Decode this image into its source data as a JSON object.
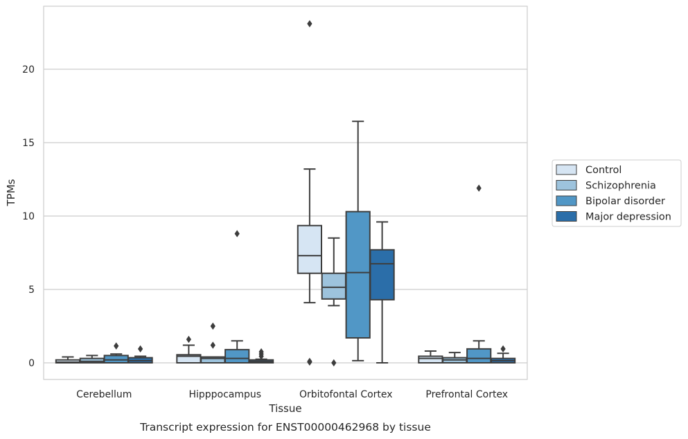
{
  "chart_data": {
    "type": "box",
    "title": "",
    "caption": "Transcript expression for ENST00000462968 by tissue",
    "xlabel": "Tissue",
    "ylabel": "TPMs",
    "ylim": [
      -1.1,
      24.4
    ],
    "yticks": [
      0,
      5,
      10,
      15,
      20
    ],
    "grid": "horizontal",
    "legend_position": "right",
    "categories": [
      "Cerebellum",
      "Hipppocampus",
      "Orbitofontal Cortex",
      "Prefrontal Cortex"
    ],
    "series": [
      {
        "name": "Control",
        "color": "#d6e5f3",
        "boxes": [
          {
            "whislo": 0,
            "q1": 0,
            "med": 0.05,
            "q3": 0.2,
            "whishi": 0.4,
            "fliers": []
          },
          {
            "whislo": 0,
            "q1": 0,
            "med": 0.45,
            "q3": 0.55,
            "whishi": 1.2,
            "fliers": [
              1.6
            ]
          },
          {
            "whislo": 4.1,
            "q1": 6.1,
            "med": 7.3,
            "q3": 9.35,
            "whishi": 13.2,
            "fliers": [
              0.05,
              0.1,
              23.1
            ]
          },
          {
            "whislo": 0,
            "q1": 0,
            "med": 0.3,
            "q3": 0.45,
            "whishi": 0.8,
            "fliers": []
          }
        ]
      },
      {
        "name": "Schizophrenia",
        "color": "#9dc3dd",
        "boxes": [
          {
            "whislo": 0,
            "q1": 0,
            "med": 0.1,
            "q3": 0.3,
            "whishi": 0.5,
            "fliers": []
          },
          {
            "whislo": 0,
            "q1": 0,
            "med": 0.3,
            "q3": 0.4,
            "whishi": 0.4,
            "fliers": [
              1.2,
              2.5
            ]
          },
          {
            "whislo": 3.9,
            "q1": 4.35,
            "med": 5.15,
            "q3": 6.1,
            "whishi": 8.5,
            "fliers": [
              0.0
            ]
          },
          {
            "whislo": 0,
            "q1": 0,
            "med": 0.2,
            "q3": 0.35,
            "whishi": 0.7,
            "fliers": []
          }
        ]
      },
      {
        "name": "Bipolar disorder",
        "color": "#5197c6",
        "boxes": [
          {
            "whislo": 0,
            "q1": 0,
            "med": 0.2,
            "q3": 0.5,
            "whishi": 0.6,
            "fliers": [
              1.15
            ]
          },
          {
            "whislo": 0,
            "q1": 0,
            "med": 0.3,
            "q3": 0.9,
            "whishi": 1.5,
            "fliers": [
              8.8
            ]
          },
          {
            "whislo": 0.15,
            "q1": 1.7,
            "med": 6.15,
            "q3": 10.3,
            "whishi": 16.45,
            "fliers": []
          },
          {
            "whislo": 0,
            "q1": 0,
            "med": 0.3,
            "q3": 0.95,
            "whishi": 1.5,
            "fliers": [
              11.9
            ]
          }
        ]
      },
      {
        "name": "Major depression",
        "color": "#2b6ea9",
        "boxes": [
          {
            "whislo": 0,
            "q1": 0,
            "med": 0.15,
            "q3": 0.35,
            "whishi": 0.45,
            "fliers": [
              0.95
            ]
          },
          {
            "whislo": 0,
            "q1": 0,
            "med": 0.1,
            "q3": 0.2,
            "whishi": 0.25,
            "fliers": [
              0.45,
              0.6,
              0.75
            ]
          },
          {
            "whislo": 0,
            "q1": 4.3,
            "med": 6.75,
            "q3": 7.7,
            "whishi": 9.6,
            "fliers": []
          },
          {
            "whislo": 0,
            "q1": 0,
            "med": 0.15,
            "q3": 0.3,
            "whishi": 0.65,
            "fliers": [
              0.95
            ]
          }
        ]
      }
    ]
  }
}
